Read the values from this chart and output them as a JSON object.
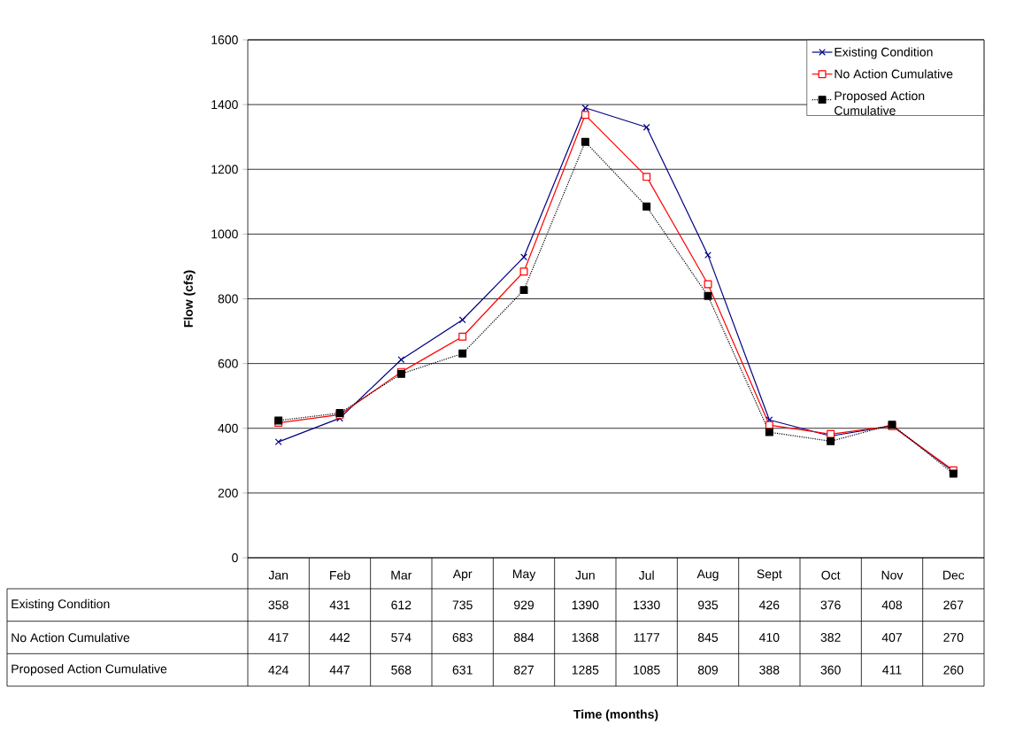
{
  "chart_data": {
    "type": "line",
    "annotations": [
      "Time (months)"
    ],
    "ylabel": "Flow (cfs)",
    "categories": [
      "Jan",
      "Feb",
      "Mar",
      "Apr",
      "May",
      "Jun",
      "Jul",
      "Aug",
      "Sept",
      "Oct",
      "Nov",
      "Dec"
    ],
    "series": [
      {
        "name": "Existing Condition",
        "color": "#000080",
        "marker": "cross",
        "line_style": "solid",
        "values": [
          358,
          431,
          612,
          735,
          929,
          1390,
          1330,
          935,
          426,
          376,
          408,
          267
        ]
      },
      {
        "name": "No Action Cumulative",
        "color": "#ff0000",
        "marker": "square",
        "line_style": "solid",
        "values": [
          417,
          442,
          574,
          683,
          884,
          1368,
          1177,
          845,
          410,
          382,
          407,
          270
        ]
      },
      {
        "name": "Proposed Action Cumulative",
        "color": "#000000",
        "marker": "square",
        "line_style": "dotted",
        "values": [
          424,
          447,
          568,
          631,
          827,
          1285,
          1085,
          809,
          388,
          360,
          411,
          260
        ]
      }
    ],
    "ylim": [
      0,
      1600
    ],
    "yticks": [
      0,
      200,
      400,
      600,
      800,
      1000,
      1200,
      1400,
      1600
    ],
    "grid": "y",
    "legend": "top right",
    "data_labels": true
  }
}
